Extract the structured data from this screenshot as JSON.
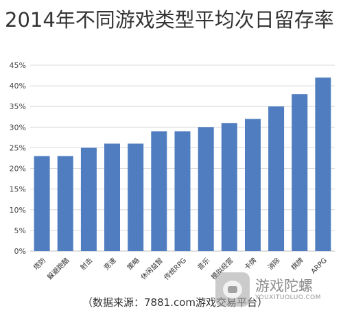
{
  "chart_data": {
    "type": "bar",
    "title": "2014年不同游戏类型平均次日留存率",
    "categories": [
      "塔防",
      "躲避跑酷",
      "射击",
      "竞速",
      "策略",
      "休闲益智",
      "传统RPG",
      "音乐",
      "模拟经营",
      "卡牌",
      "消除",
      "棋牌",
      "ARPG"
    ],
    "values": [
      23,
      23,
      25,
      26,
      26,
      29,
      29,
      30,
      31,
      32,
      35,
      38,
      42
    ],
    "value_unit": "%",
    "ylim": [
      0,
      45
    ],
    "yticks": [
      "0%",
      "5%",
      "10%",
      "15%",
      "20%",
      "25%",
      "30%",
      "35%",
      "40%",
      "45%"
    ],
    "grid": true,
    "legend": "none",
    "bar_color": "#4f7dc0"
  },
  "source": "（数据来源：7881.com游戏交易平台）",
  "watermark": {
    "name": "游戏陀螺",
    "url": "YOUXITUOLUO.COM"
  }
}
